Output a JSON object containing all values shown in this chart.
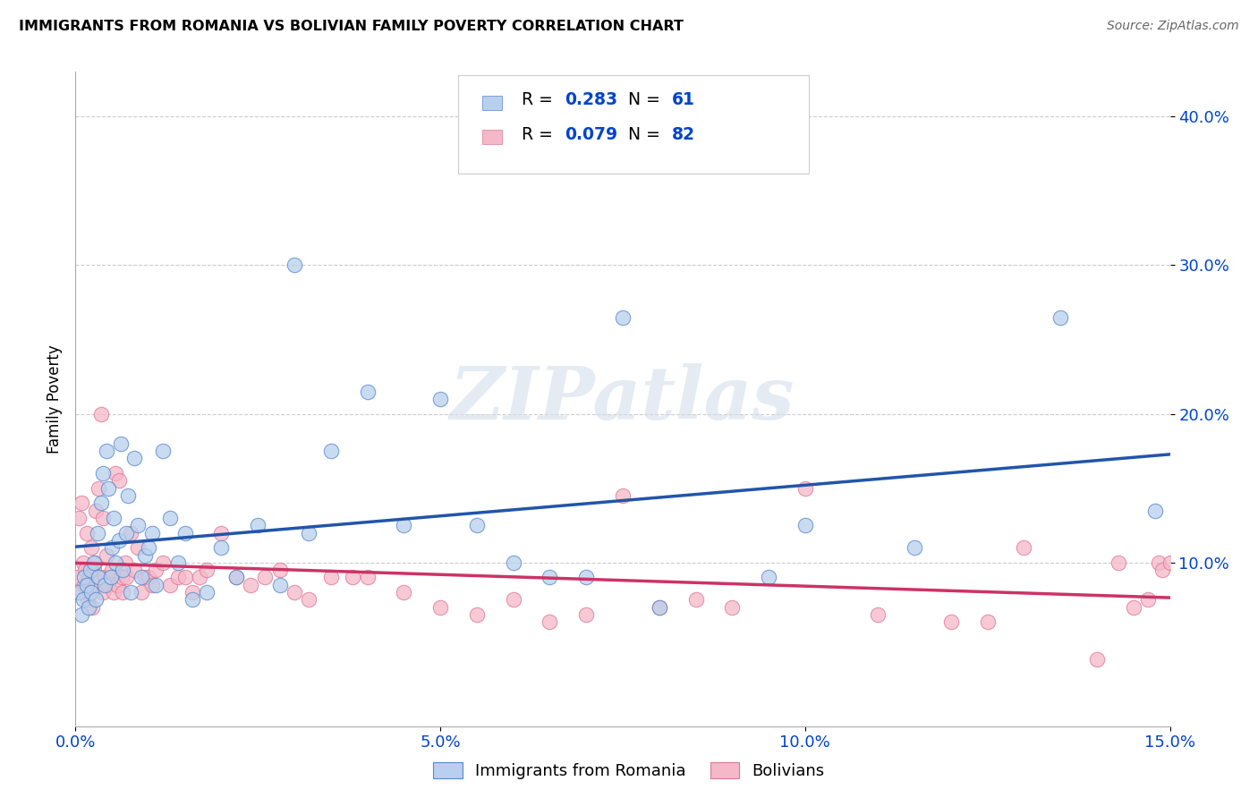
{
  "title": "IMMIGRANTS FROM ROMANIA VS BOLIVIAN FAMILY POVERTY CORRELATION CHART",
  "source": "Source: ZipAtlas.com",
  "ylabel": "Family Poverty",
  "xlim": [
    0.0,
    15.0
  ],
  "ylim": [
    -1.0,
    43.0
  ],
  "y_ticks": [
    10.0,
    20.0,
    30.0,
    40.0
  ],
  "x_ticks": [
    0.0,
    5.0,
    10.0,
    15.0
  ],
  "series1_name": "Immigrants from Romania",
  "series1_R": "0.283",
  "series1_N": "61",
  "series1_color": "#b8d0ed",
  "series1_edge_color": "#5588cc",
  "series1_line_color": "#2255aa",
  "series2_name": "Bolivians",
  "series2_R": "0.079",
  "series2_N": "82",
  "series2_color": "#f5b8c8",
  "series2_edge_color": "#dd7799",
  "series2_line_color": "#cc3366",
  "legend_text_color": "#0044cc",
  "watermark_text": "ZIPatlas",
  "background_color": "#ffffff",
  "grid_color": "#cccccc",
  "series1_x": [
    0.05,
    0.08,
    0.1,
    0.12,
    0.15,
    0.18,
    0.2,
    0.22,
    0.25,
    0.28,
    0.3,
    0.32,
    0.35,
    0.38,
    0.4,
    0.42,
    0.45,
    0.48,
    0.5,
    0.52,
    0.55,
    0.6,
    0.62,
    0.65,
    0.7,
    0.72,
    0.75,
    0.8,
    0.85,
    0.9,
    0.95,
    1.0,
    1.05,
    1.1,
    1.2,
    1.3,
    1.4,
    1.5,
    1.6,
    1.8,
    2.0,
    2.2,
    2.5,
    2.8,
    3.0,
    3.2,
    3.5,
    4.0,
    4.5,
    5.0,
    5.5,
    6.0,
    6.5,
    7.0,
    7.5,
    8.0,
    9.5,
    10.0,
    11.5,
    13.5,
    14.8
  ],
  "series1_y": [
    8.0,
    6.5,
    7.5,
    9.0,
    8.5,
    7.0,
    9.5,
    8.0,
    10.0,
    7.5,
    12.0,
    9.0,
    14.0,
    16.0,
    8.5,
    17.5,
    15.0,
    9.0,
    11.0,
    13.0,
    10.0,
    11.5,
    18.0,
    9.5,
    12.0,
    14.5,
    8.0,
    17.0,
    12.5,
    9.0,
    10.5,
    11.0,
    12.0,
    8.5,
    17.5,
    13.0,
    10.0,
    12.0,
    7.5,
    8.0,
    11.0,
    9.0,
    12.5,
    8.5,
    30.0,
    12.0,
    17.5,
    21.5,
    12.5,
    21.0,
    12.5,
    10.0,
    9.0,
    9.0,
    26.5,
    7.0,
    9.0,
    12.5,
    11.0,
    26.5,
    13.5
  ],
  "series2_x": [
    0.03,
    0.05,
    0.07,
    0.08,
    0.1,
    0.12,
    0.13,
    0.15,
    0.17,
    0.18,
    0.2,
    0.22,
    0.23,
    0.25,
    0.27,
    0.28,
    0.3,
    0.32,
    0.33,
    0.35,
    0.37,
    0.38,
    0.4,
    0.42,
    0.45,
    0.47,
    0.5,
    0.52,
    0.55,
    0.57,
    0.6,
    0.63,
    0.65,
    0.68,
    0.7,
    0.75,
    0.8,
    0.85,
    0.9,
    0.95,
    1.0,
    1.05,
    1.1,
    1.2,
    1.3,
    1.4,
    1.5,
    1.6,
    1.7,
    1.8,
    2.0,
    2.2,
    2.4,
    2.6,
    2.8,
    3.0,
    3.5,
    4.0,
    4.5,
    5.0,
    6.0,
    7.0,
    7.5,
    8.5,
    9.0,
    10.0,
    11.0,
    12.0,
    12.5,
    13.0,
    14.0,
    14.3,
    14.5,
    14.7,
    14.85,
    14.9,
    15.0,
    3.2,
    3.8,
    5.5,
    6.5,
    8.0
  ],
  "series2_y": [
    9.0,
    13.0,
    8.0,
    14.0,
    10.0,
    8.5,
    9.5,
    12.0,
    7.5,
    9.0,
    8.0,
    11.0,
    7.0,
    9.5,
    10.0,
    13.5,
    8.5,
    15.0,
    9.0,
    20.0,
    8.0,
    13.0,
    9.0,
    10.5,
    8.5,
    9.0,
    9.5,
    8.0,
    16.0,
    8.5,
    15.5,
    9.0,
    8.0,
    10.0,
    9.0,
    12.0,
    9.5,
    11.0,
    8.0,
    9.0,
    9.0,
    8.5,
    9.5,
    10.0,
    8.5,
    9.0,
    9.0,
    8.0,
    9.0,
    9.5,
    12.0,
    9.0,
    8.5,
    9.0,
    9.5,
    8.0,
    9.0,
    9.0,
    8.0,
    7.0,
    7.5,
    6.5,
    14.5,
    7.5,
    7.0,
    15.0,
    6.5,
    6.0,
    6.0,
    11.0,
    3.5,
    10.0,
    7.0,
    7.5,
    10.0,
    9.5,
    10.0,
    7.5,
    9.0,
    6.5,
    6.0,
    7.0
  ]
}
